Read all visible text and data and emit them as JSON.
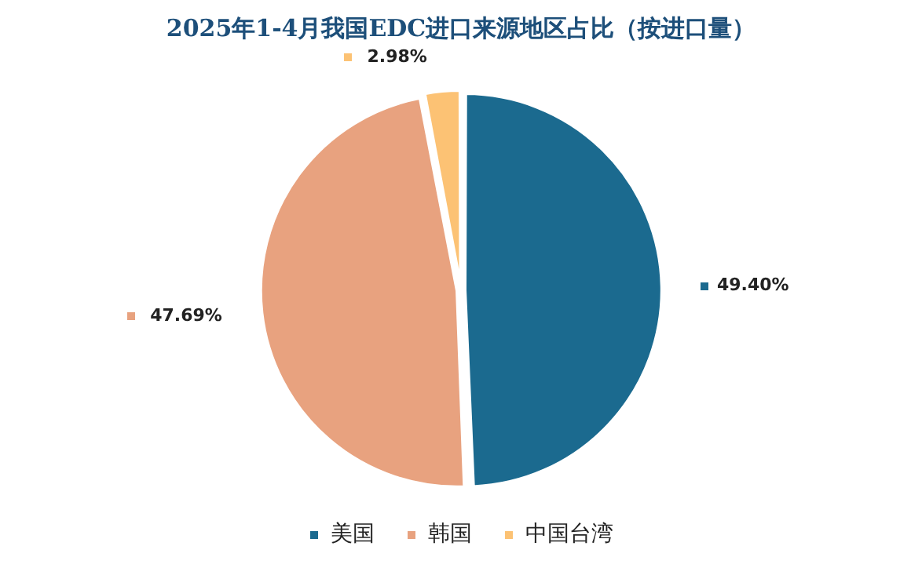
{
  "chart_data": {
    "type": "pie",
    "title": "2025年1-4月我国EDC进口来源地区占比（按进口量）",
    "categories": [
      "美国",
      "韩国",
      "中国台湾"
    ],
    "values": [
      49.4,
      47.69,
      2.98
    ],
    "colors": [
      "#1b6a8f",
      "#e8a27f",
      "#fcc274"
    ],
    "value_labels": [
      "49.40%",
      "47.69%",
      "2.98%"
    ],
    "legend": "bottom"
  }
}
